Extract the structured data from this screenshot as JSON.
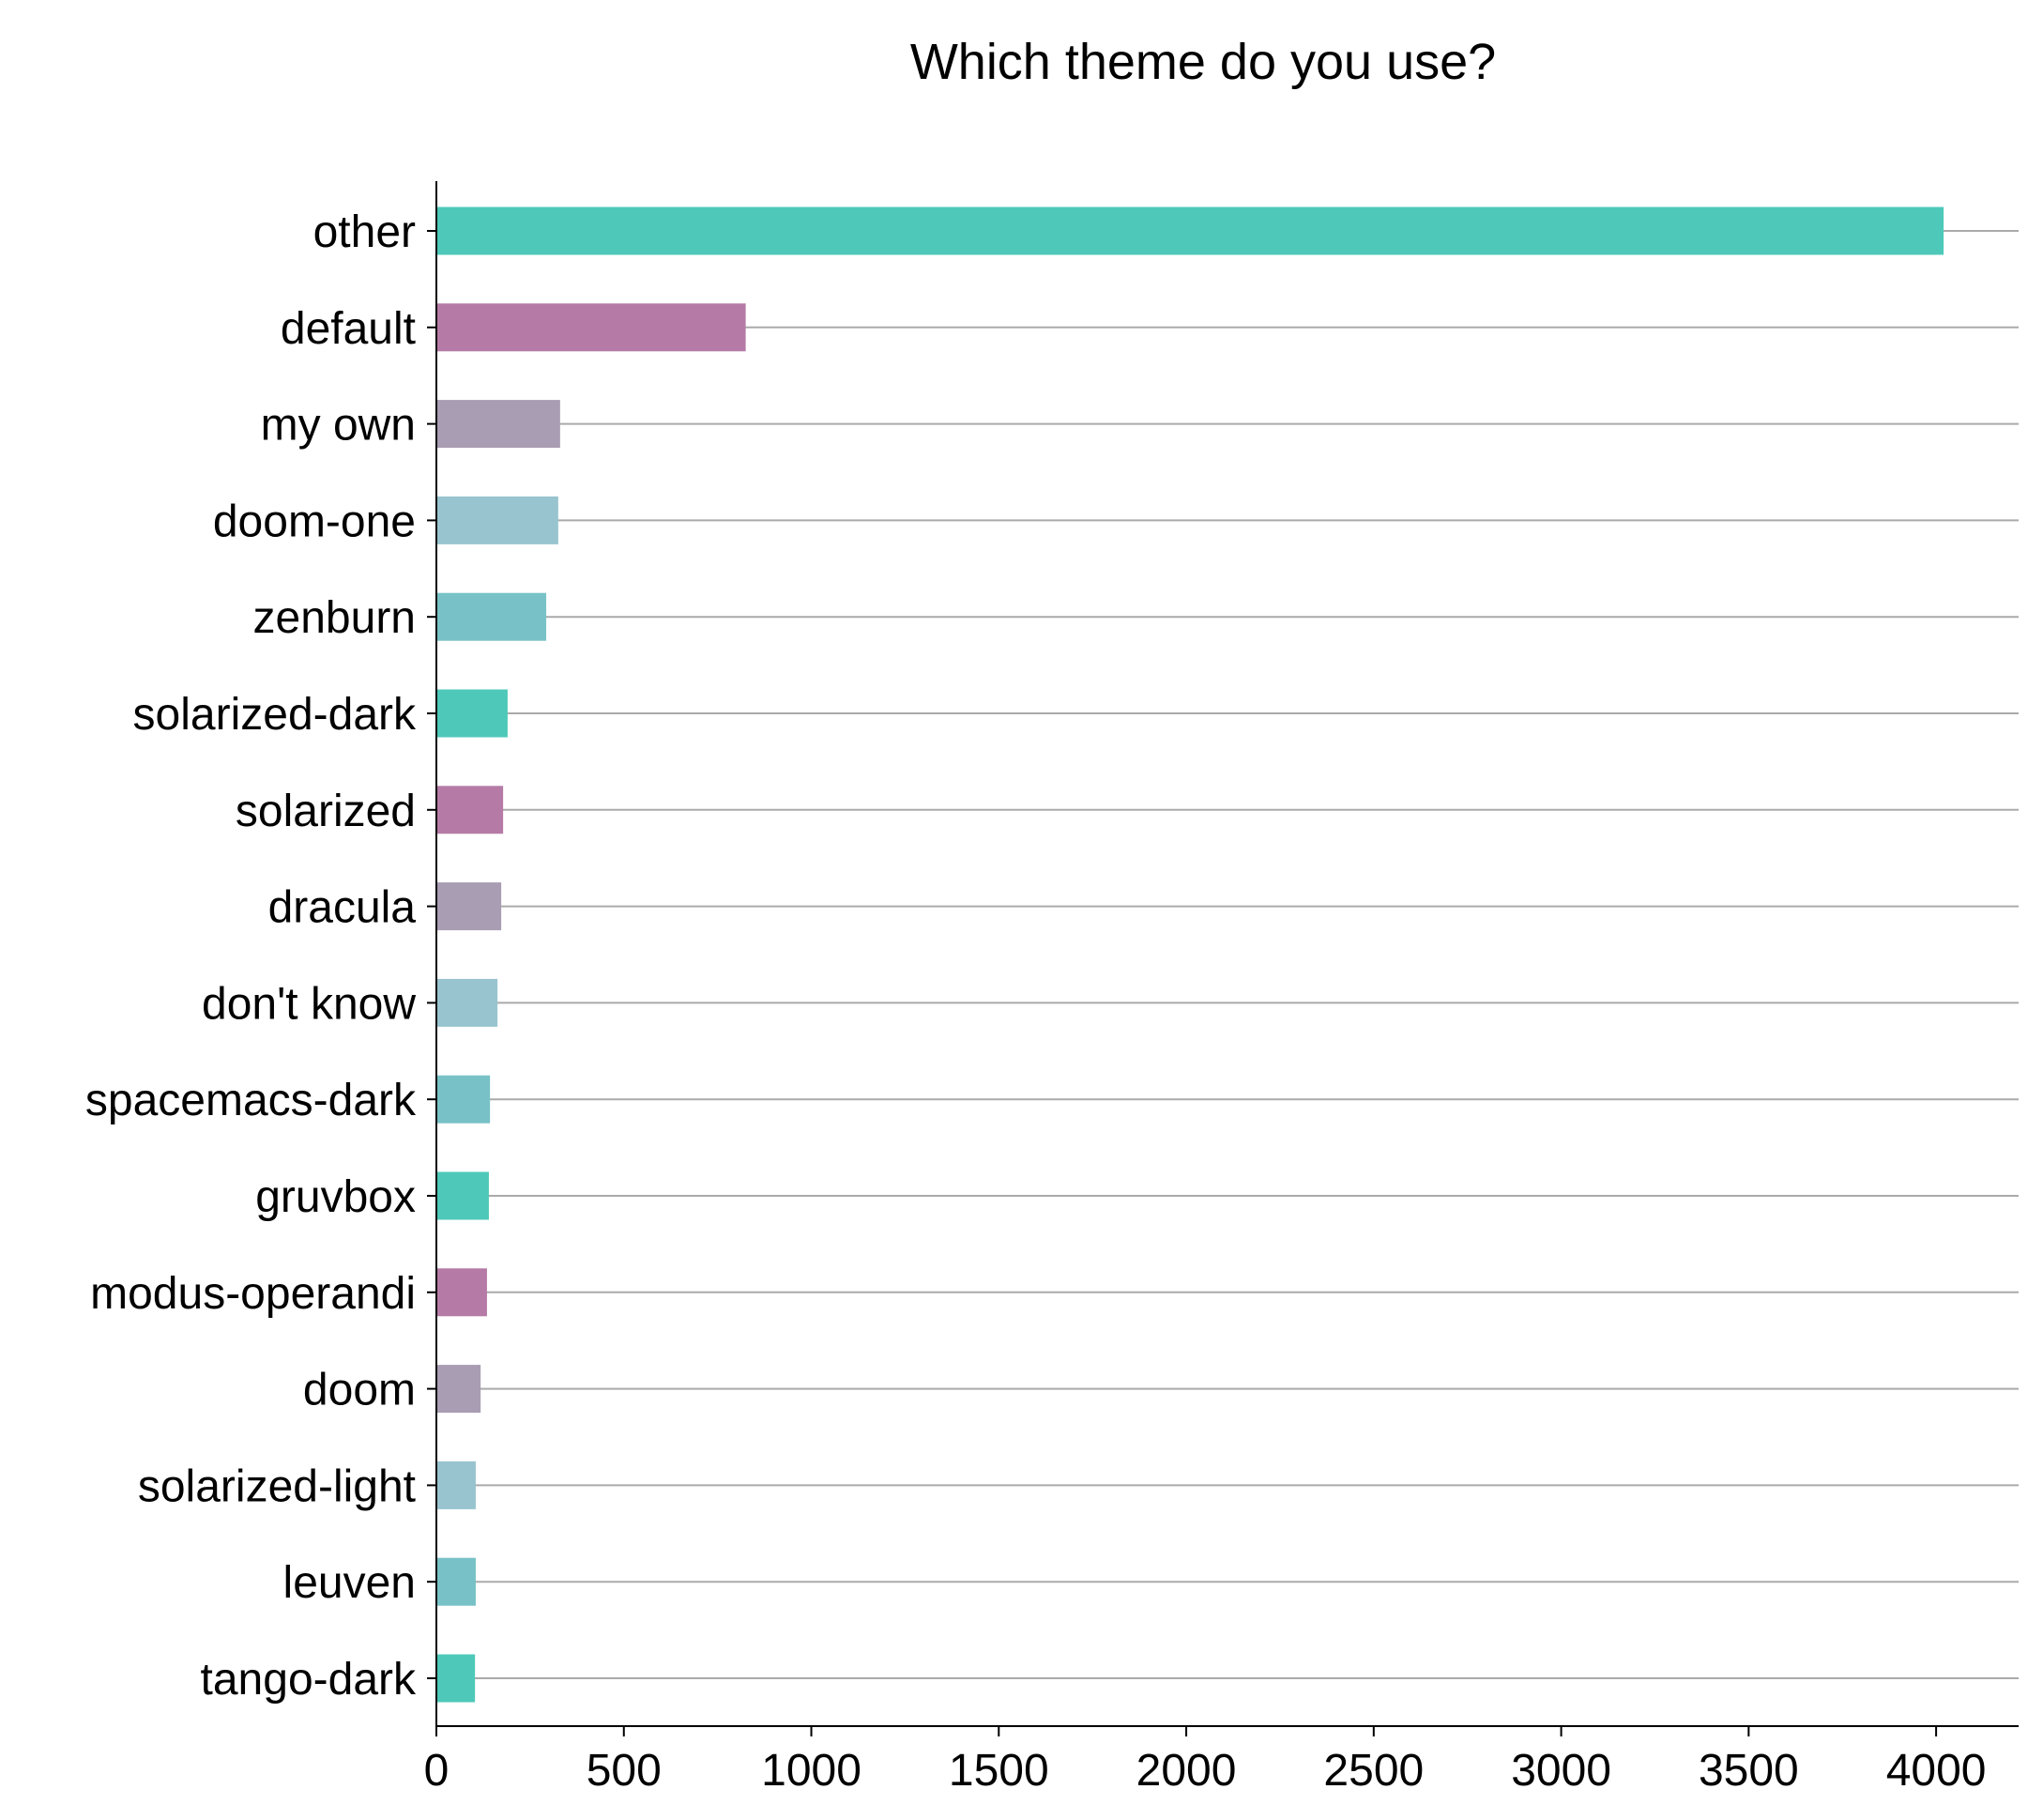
{
  "chart_data": {
    "type": "bar",
    "orientation": "horizontal",
    "title": "Which theme do you use?",
    "xlabel": "",
    "ylabel": "",
    "categories": [
      "other",
      "default",
      "my own",
      "doom-one",
      "zenburn",
      "solarized-dark",
      "solarized",
      "dracula",
      "don't know",
      "spacemacs-dark",
      "gruvbox",
      "modus-operandi",
      "doom",
      "solarized-light",
      "leuven",
      "tango-dark"
    ],
    "values": [
      4020,
      825,
      330,
      325,
      293,
      190,
      178,
      173,
      163,
      143,
      140,
      135,
      118,
      105,
      105,
      103
    ],
    "xlim": [
      0,
      4220
    ],
    "xticks": [
      "0",
      "500",
      "1000",
      "1500",
      "2000",
      "2500",
      "3000",
      "3500",
      "4000"
    ],
    "grid": "horizontal lines at each category",
    "legend": "none",
    "colors": [
      "#4ec9b9",
      "#b57ba6",
      "#a89db3",
      "#98c4cf",
      "#78c2c7"
    ]
  }
}
